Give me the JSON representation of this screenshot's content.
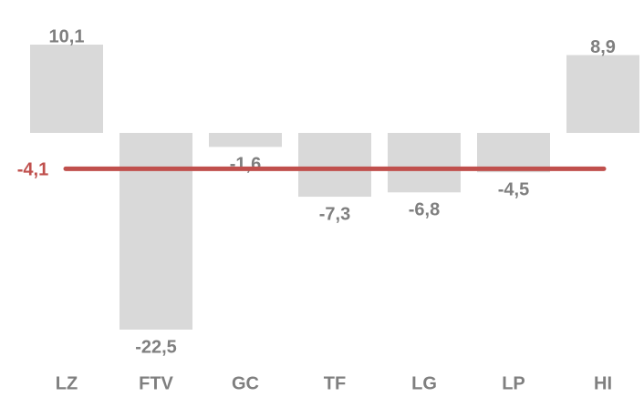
{
  "chart_data": {
    "type": "bar",
    "categories": [
      "LZ",
      "FTV",
      "GC",
      "TF",
      "LG",
      "LP",
      "HI"
    ],
    "values": [
      10.1,
      -22.5,
      -1.6,
      -7.3,
      -6.8,
      -4.5,
      8.9
    ],
    "value_labels": [
      "10,1",
      "-22,5",
      "-1,6",
      "-7,3",
      "-6,8",
      "-4,5",
      "8,9"
    ],
    "color": "#d9d9d9",
    "reference_line": {
      "value": -4.1,
      "label": "-4,1",
      "color": "#c0504d"
    }
  }
}
